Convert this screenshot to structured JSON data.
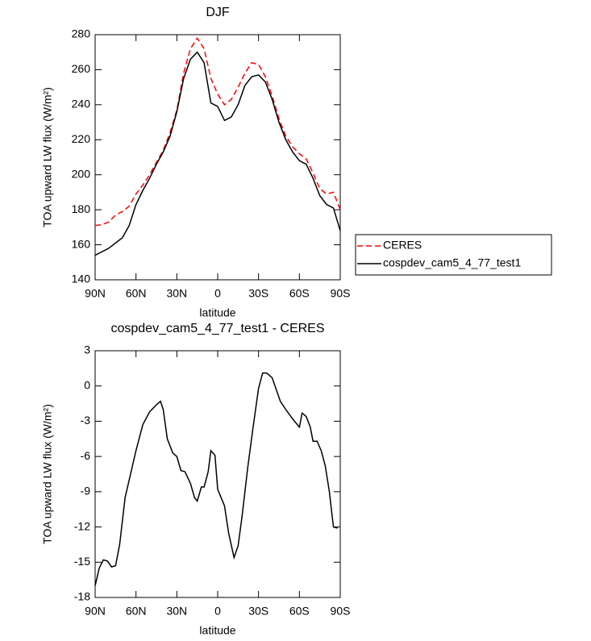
{
  "chart_data": [
    {
      "type": "line",
      "title": "DJF",
      "xlabel": "latitude",
      "ylabel": "TOA upward LW flux (W/m²)",
      "x": [
        90,
        85,
        80,
        75,
        70,
        65,
        60,
        55,
        50,
        45,
        40,
        35,
        30,
        25,
        20,
        15,
        10,
        5,
        0,
        -5,
        -10,
        -15,
        -20,
        -25,
        -30,
        -35,
        -40,
        -45,
        -50,
        -55,
        -60,
        -65,
        -70,
        -75,
        -80,
        -85,
        -90
      ],
      "series": [
        {
          "name": "CERES",
          "color": "#ff0000",
          "linestyle": "dashed",
          "values": [
            171,
            171.5,
            173,
            177,
            179,
            182,
            189,
            194,
            200,
            207,
            214,
            224,
            237,
            258,
            272,
            278,
            272,
            255,
            246,
            240,
            243,
            250,
            258,
            264,
            263,
            256,
            245,
            232,
            222,
            216,
            212,
            209,
            201,
            192,
            189,
            190,
            180
          ]
        },
        {
          "name": "cospdev_cam5_4_77_test1",
          "color": "#000000",
          "linestyle": "solid",
          "values": [
            154,
            156,
            158,
            161,
            164,
            171,
            183,
            191,
            198,
            206,
            213,
            222,
            236,
            255,
            266,
            270,
            264,
            241,
            239,
            231,
            233,
            240,
            251,
            256,
            257,
            253,
            243,
            230,
            220,
            213,
            208,
            206,
            198,
            188,
            183,
            181,
            168
          ]
        }
      ],
      "xlim": [
        90,
        -90
      ],
      "xticks": [
        {
          "value": 90,
          "label": "90N"
        },
        {
          "value": 60,
          "label": "60N"
        },
        {
          "value": 30,
          "label": "30N"
        },
        0,
        {
          "value": -30,
          "label": "30S"
        },
        {
          "value": -60,
          "label": "60S"
        },
        {
          "value": -90,
          "label": "90S"
        }
      ],
      "ylim": [
        140,
        280
      ],
      "yticks": [
        140,
        160,
        180,
        200,
        220,
        240,
        260,
        280
      ],
      "legend": "right"
    },
    {
      "type": "line",
      "title": "cospdev_cam5_4_77_test1 - CERES",
      "xlabel": "latitude",
      "ylabel": "TOA upward LW flux (W/m²)",
      "x": [
        90,
        87,
        84,
        81,
        78,
        75,
        72,
        68,
        65,
        60,
        55,
        50,
        45,
        42,
        40,
        37,
        33,
        30,
        27,
        24,
        20,
        17,
        15,
        12,
        10,
        7,
        5,
        2,
        0,
        -5,
        -8,
        -12,
        -15,
        -18,
        -22,
        -26,
        -30,
        -33,
        -36,
        -40,
        -43,
        -46,
        -50,
        -55,
        -60,
        -62,
        -65,
        -68,
        -70,
        -73,
        -76,
        -79,
        -82,
        -85,
        -88
      ],
      "color": "#000000",
      "values": [
        -17,
        -15.5,
        -14.8,
        -14.9,
        -15.4,
        -15.3,
        -13.5,
        -9.5,
        -8,
        -5.5,
        -3.3,
        -2.2,
        -1.6,
        -1.3,
        -2,
        -4.5,
        -5.7,
        -6,
        -7.2,
        -7.3,
        -8.3,
        -9.5,
        -9.8,
        -8.6,
        -8.6,
        -7.3,
        -5.5,
        -5.9,
        -8.8,
        -10.2,
        -12.5,
        -14.6,
        -13.6,
        -11,
        -7,
        -3.5,
        -0.2,
        1.1,
        1.1,
        0.7,
        -0.3,
        -1.3,
        -2,
        -2.8,
        -3.5,
        -2.3,
        -2.6,
        -3.5,
        -4.7,
        -4.7,
        -5.5,
        -6.8,
        -9,
        -12,
        -12.1
      ],
      "xlim": [
        90,
        -90
      ],
      "xticks": [
        {
          "value": 90,
          "label": "90N"
        },
        {
          "value": 60,
          "label": "60N"
        },
        {
          "value": 30,
          "label": "30N"
        },
        0,
        {
          "value": -30,
          "label": "30S"
        },
        {
          "value": -60,
          "label": "60S"
        },
        {
          "value": -90,
          "label": "90S"
        }
      ],
      "ylim": [
        -18,
        3
      ],
      "yticks": [
        -18,
        -15,
        -12,
        -9,
        -6,
        -3,
        0,
        3
      ]
    }
  ]
}
